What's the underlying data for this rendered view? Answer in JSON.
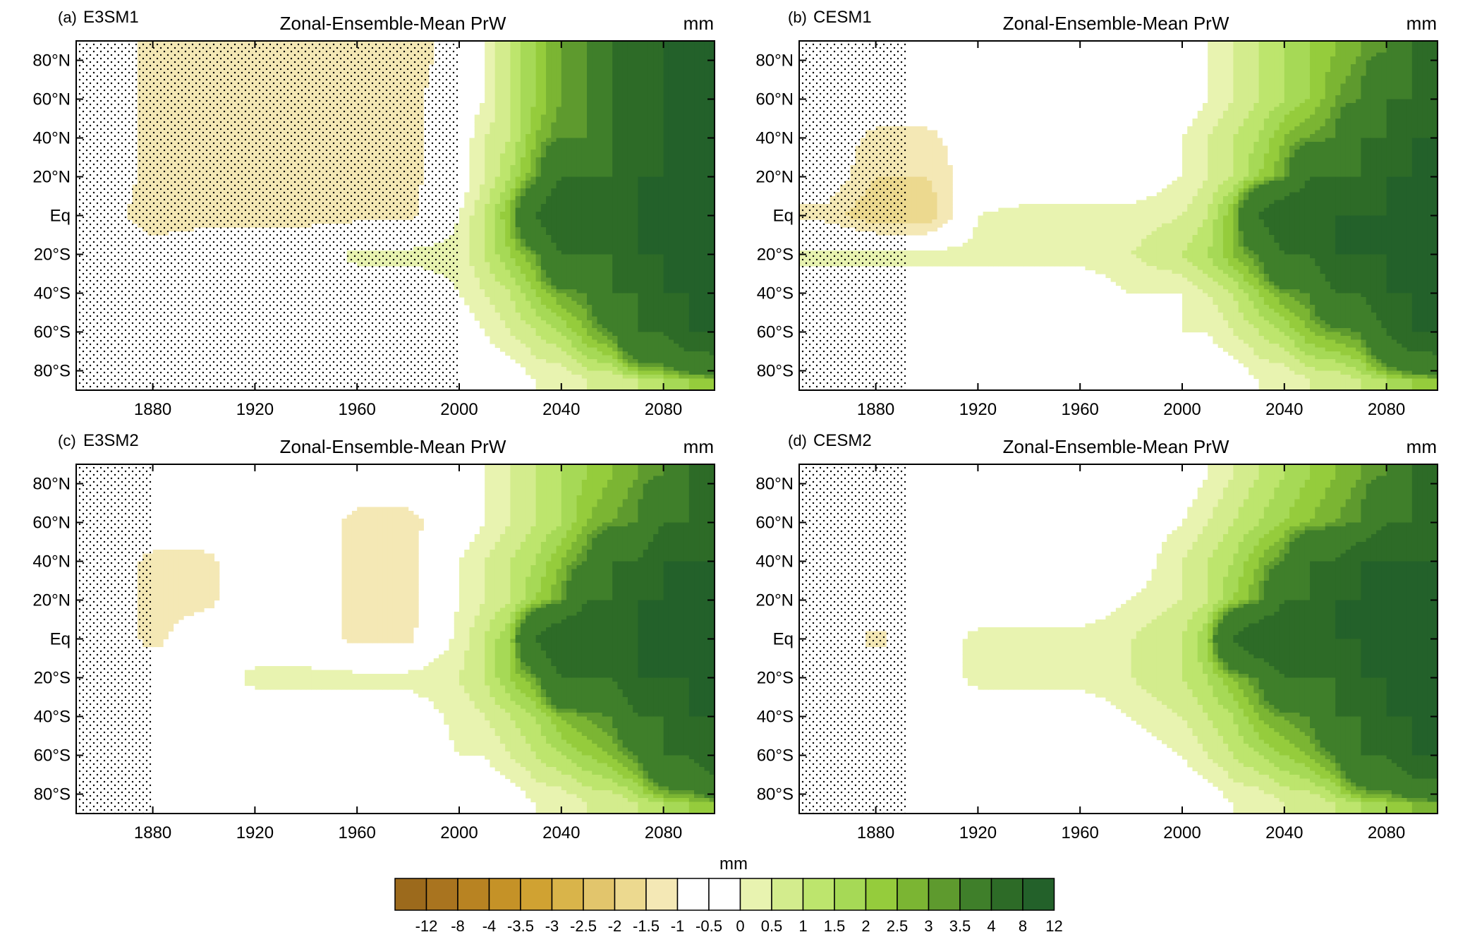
{
  "panels": [
    {
      "tag": "(a)",
      "model": "E3SM1",
      "title": "Zonal-Ensemble-Mean PrW",
      "units": "mm"
    },
    {
      "tag": "(b)",
      "model": "CESM1",
      "title": "Zonal-Ensemble-Mean PrW",
      "units": "mm"
    },
    {
      "tag": "(c)",
      "model": "E3SM2",
      "title": "Zonal-Ensemble-Mean PrW",
      "units": "mm"
    },
    {
      "tag": "(d)",
      "model": "CESM2",
      "title": "Zonal-Ensemble-Mean PrW",
      "units": "mm"
    }
  ],
  "colorbar": {
    "units": "mm",
    "labels": [
      "-12",
      "-8",
      "-4",
      "-3.5",
      "-3",
      "-2.5",
      "-2",
      "-1.5",
      "-1",
      "-0.5",
      "0",
      "0.5",
      "1",
      "1.5",
      "2",
      "2.5",
      "3",
      "3.5",
      "4",
      "8",
      "12"
    ],
    "colors": [
      "#9c6a1c",
      "#a9741f",
      "#b88322",
      "#c59227",
      "#d0a232",
      "#d9b44a",
      "#e2c56c",
      "#ecd98f",
      "#f4e8b5",
      "#ffffff",
      "#ffffff",
      "#e8f3b0",
      "#d3ec8d",
      "#bde56d",
      "#a6d956",
      "#95cc3c",
      "#7bb533",
      "#5e9a2e",
      "#3f7f2a",
      "#2d6b27",
      "#23612a"
    ]
  },
  "chart_data": [
    {
      "type": "heatmap",
      "panel": "(a)",
      "name": "E3SM1",
      "title": "Zonal-Ensemble-Mean PrW",
      "units": "mm",
      "xlim": [
        1850,
        2100
      ],
      "ylim": [
        -90,
        90
      ],
      "xticks": [
        "1880",
        "1920",
        "1960",
        "2000",
        "2040",
        "2080"
      ],
      "yticks": [
        "80°N",
        "60°N",
        "40°N",
        "20°N",
        "Eq",
        "20°S",
        "40°S",
        "60°S",
        "80°S"
      ],
      "x": [
        1860,
        1880,
        1900,
        1920,
        1940,
        1960,
        1980,
        2000,
        2010,
        2020,
        2030,
        2040,
        2050,
        2060,
        2070,
        2080,
        2090,
        2100
      ],
      "lat": [
        85,
        60,
        40,
        20,
        0,
        -20,
        -40,
        -60,
        -85
      ],
      "values": [
        [
          0,
          -0.7,
          -0.7,
          -0.7,
          -0.7,
          -1,
          -1,
          0,
          0.5,
          1.5,
          2.5,
          3.5,
          4,
          8,
          8,
          12,
          12,
          12
        ],
        [
          0,
          -0.7,
          -0.7,
          -0.7,
          -0.7,
          -1,
          -0.7,
          0,
          0.5,
          1.5,
          2.5,
          3.5,
          4,
          8,
          8,
          12,
          12,
          12
        ],
        [
          0,
          -0.7,
          -0.7,
          -0.7,
          -0.7,
          -1,
          -0.7,
          0,
          1,
          1.5,
          3,
          4,
          4,
          8,
          8,
          12,
          12,
          12
        ],
        [
          0,
          -0.7,
          -0.7,
          -0.7,
          -0.7,
          -0.7,
          -0.7,
          0,
          1,
          2,
          3.5,
          8,
          8,
          8,
          12,
          12,
          12,
          12
        ],
        [
          0,
          -1,
          -0.7,
          -0.7,
          -0.7,
          -0.7,
          -0.7,
          0.5,
          1.5,
          3,
          8,
          12,
          12,
          12,
          12,
          12,
          12,
          12
        ],
        [
          0,
          0,
          0,
          0,
          0,
          0.7,
          0.7,
          0.7,
          1.5,
          2.5,
          3.5,
          8,
          8,
          8,
          12,
          12,
          12,
          12
        ],
        [
          0,
          0,
          0,
          0,
          0,
          0,
          0,
          0.5,
          1,
          1.5,
          2.5,
          3.5,
          4,
          8,
          8,
          12,
          12,
          12
        ],
        [
          0,
          0,
          0,
          0,
          0,
          0,
          0,
          0,
          0.5,
          1,
          1.5,
          2,
          3,
          4,
          8,
          8,
          12,
          12
        ],
        [
          0,
          0,
          0,
          0,
          0,
          0,
          0,
          0,
          0,
          0,
          0.5,
          0.5,
          1,
          1,
          1.5,
          2,
          2.5,
          3
        ]
      ]
    },
    {
      "type": "heatmap",
      "panel": "(b)",
      "name": "CESM1",
      "title": "Zonal-Ensemble-Mean PrW",
      "units": "mm",
      "xlim": [
        1850,
        2100
      ],
      "ylim": [
        -90,
        90
      ],
      "xticks": [
        "1880",
        "1920",
        "1960",
        "2000",
        "2040",
        "2080"
      ],
      "yticks": [
        "80°N",
        "60°N",
        "40°N",
        "20°N",
        "Eq",
        "20°S",
        "40°S",
        "60°S",
        "80°S"
      ],
      "x": [
        1860,
        1880,
        1900,
        1920,
        1940,
        1960,
        1980,
        2000,
        2010,
        2020,
        2030,
        2040,
        2050,
        2060,
        2070,
        2080,
        2090,
        2100
      ],
      "lat": [
        85,
        60,
        40,
        20,
        0,
        -20,
        -40,
        -60,
        -85
      ],
      "values": [
        [
          0,
          0,
          0,
          0,
          0,
          0,
          0,
          0,
          0.5,
          1,
          1.5,
          2,
          2.5,
          3,
          3.5,
          4,
          8,
          8
        ],
        [
          0,
          0,
          0,
          0,
          0,
          0,
          0,
          0,
          0.5,
          1,
          1.5,
          2,
          2.5,
          3.5,
          4,
          8,
          8,
          8
        ],
        [
          0,
          -0.7,
          -0.7,
          0,
          0,
          0,
          0,
          0.5,
          1,
          1.5,
          2,
          3,
          3.5,
          4,
          8,
          8,
          12,
          12
        ],
        [
          0,
          -1,
          -1,
          0,
          0,
          0,
          0,
          0.5,
          1,
          1.5,
          2.5,
          3.5,
          8,
          8,
          8,
          12,
          12,
          12
        ],
        [
          -0.7,
          -1.5,
          -1.5,
          0.5,
          0.7,
          0.7,
          0.7,
          1,
          1.5,
          3,
          8,
          12,
          12,
          12,
          12,
          12,
          12,
          12
        ],
        [
          0.7,
          0.7,
          0.7,
          0.7,
          0.7,
          0.7,
          1,
          1.5,
          2,
          3,
          4,
          8,
          8,
          12,
          12,
          12,
          12,
          12
        ],
        [
          0,
          0,
          0,
          0,
          0,
          0,
          0.5,
          0.5,
          1,
          1.5,
          2.5,
          3.5,
          4,
          8,
          8,
          12,
          12,
          12
        ],
        [
          0,
          0,
          0,
          0,
          0,
          0,
          0,
          0.5,
          0.5,
          1,
          1.5,
          2,
          3,
          3.5,
          4,
          8,
          12,
          12
        ],
        [
          0,
          0,
          0,
          0,
          0,
          0,
          0,
          0,
          0,
          0,
          0.5,
          0.5,
          1,
          1,
          1.5,
          2,
          2.5,
          3
        ]
      ]
    },
    {
      "type": "heatmap",
      "panel": "(c)",
      "name": "E3SM2",
      "title": "Zonal-Ensemble-Mean PrW",
      "units": "mm",
      "xlim": [
        1850,
        2100
      ],
      "ylim": [
        -90,
        90
      ],
      "xticks": [
        "1880",
        "1920",
        "1960",
        "2000",
        "2040",
        "2080"
      ],
      "yticks": [
        "80°N",
        "60°N",
        "40°N",
        "20°N",
        "Eq",
        "20°S",
        "40°S",
        "60°S",
        "80°S"
      ],
      "x": [
        1860,
        1880,
        1900,
        1920,
        1940,
        1960,
        1980,
        2000,
        2010,
        2020,
        2030,
        2040,
        2050,
        2060,
        2070,
        2080,
        2090,
        2100
      ],
      "lat": [
        85,
        60,
        40,
        20,
        0,
        -20,
        -40,
        -60,
        -85
      ],
      "values": [
        [
          0,
          0,
          0,
          0,
          0,
          0,
          0,
          0,
          0.5,
          1,
          1.5,
          2,
          2.5,
          3,
          3.5,
          4,
          8,
          8
        ],
        [
          0,
          0,
          0,
          0,
          0,
          -0.7,
          -0.7,
          0,
          0.5,
          1,
          1.5,
          2,
          3,
          3.5,
          4,
          8,
          8,
          12
        ],
        [
          0,
          -0.7,
          -0.7,
          0,
          0,
          -0.7,
          -0.7,
          0.5,
          1,
          1.5,
          2,
          3,
          4,
          8,
          8,
          12,
          12,
          12
        ],
        [
          0,
          -0.7,
          -0.7,
          0,
          0,
          -0.7,
          -0.7,
          0.5,
          1,
          1.5,
          2.5,
          3.5,
          8,
          8,
          12,
          12,
          12,
          12
        ],
        [
          0,
          -0.7,
          0,
          0,
          0,
          -0.7,
          -0.7,
          0.7,
          1.5,
          2.5,
          8,
          12,
          12,
          12,
          12,
          12,
          12,
          12
        ],
        [
          0,
          0,
          0,
          0.7,
          0.7,
          0.7,
          0.7,
          1,
          1.5,
          2.5,
          3.5,
          8,
          8,
          8,
          12,
          12,
          12,
          12
        ],
        [
          0,
          0,
          0,
          0,
          0,
          0,
          0,
          0.7,
          1,
          1.5,
          2,
          3,
          3.5,
          4,
          8,
          8,
          12,
          12
        ],
        [
          0,
          0,
          0,
          0,
          0,
          0,
          0,
          0.5,
          0.5,
          1,
          1.5,
          2,
          2.5,
          3,
          4,
          8,
          8,
          12
        ],
        [
          0,
          0,
          0,
          0,
          0,
          0,
          0,
          0,
          0,
          0,
          0.5,
          0.5,
          1,
          1,
          1.5,
          2,
          2.5,
          3
        ]
      ]
    },
    {
      "type": "heatmap",
      "panel": "(d)",
      "name": "CESM2",
      "title": "Zonal-Ensemble-Mean PrW",
      "units": "mm",
      "xlim": [
        1850,
        2100
      ],
      "ylim": [
        -90,
        90
      ],
      "xticks": [
        "1880",
        "1920",
        "1960",
        "2000",
        "2040",
        "2080"
      ],
      "yticks": [
        "80°N",
        "60°N",
        "40°N",
        "20°N",
        "Eq",
        "20°S",
        "40°S",
        "60°S",
        "80°S"
      ],
      "x": [
        1860,
        1880,
        1900,
        1920,
        1940,
        1960,
        1980,
        2000,
        2010,
        2020,
        2030,
        2040,
        2050,
        2060,
        2070,
        2080,
        2090,
        2100
      ],
      "lat": [
        85,
        60,
        40,
        20,
        0,
        -20,
        -40,
        -60,
        -85
      ],
      "values": [
        [
          0,
          0,
          0,
          0,
          0,
          0,
          0,
          0,
          0.5,
          1,
          1.5,
          2,
          2.5,
          3,
          3.5,
          4,
          8,
          8
        ],
        [
          0,
          0,
          0,
          0,
          0,
          0,
          0,
          0.5,
          1,
          1.5,
          2,
          2.5,
          3,
          3.5,
          4,
          8,
          8,
          12
        ],
        [
          0,
          0,
          0,
          0,
          0,
          0,
          0,
          1,
          1.5,
          2,
          3,
          4,
          8,
          8,
          12,
          12,
          12,
          12
        ],
        [
          0,
          0,
          0,
          0,
          0,
          0,
          0.5,
          1,
          1.5,
          2.5,
          3.5,
          8,
          8,
          12,
          12,
          12,
          12,
          12
        ],
        [
          0,
          -0.7,
          0,
          0.7,
          0.7,
          0.7,
          1,
          1.5,
          2.5,
          8,
          12,
          12,
          12,
          12,
          12,
          12,
          12,
          12
        ],
        [
          0,
          0,
          0,
          0.7,
          0.7,
          0.7,
          1,
          1.5,
          2,
          3,
          4,
          8,
          8,
          8,
          12,
          12,
          12,
          12
        ],
        [
          0,
          0,
          0,
          0,
          0,
          0,
          0.5,
          1,
          1.5,
          2,
          3,
          3.5,
          4,
          8,
          8,
          12,
          12,
          12
        ],
        [
          0,
          0,
          0,
          0,
          0,
          0,
          0,
          0.5,
          1,
          1.5,
          2,
          2.5,
          3,
          4,
          8,
          8,
          12,
          12
        ],
        [
          0,
          0,
          0,
          0,
          0,
          0,
          0,
          0,
          0,
          0.5,
          0.5,
          1,
          1,
          1.5,
          2,
          2.5,
          3,
          3.5
        ]
      ]
    }
  ]
}
